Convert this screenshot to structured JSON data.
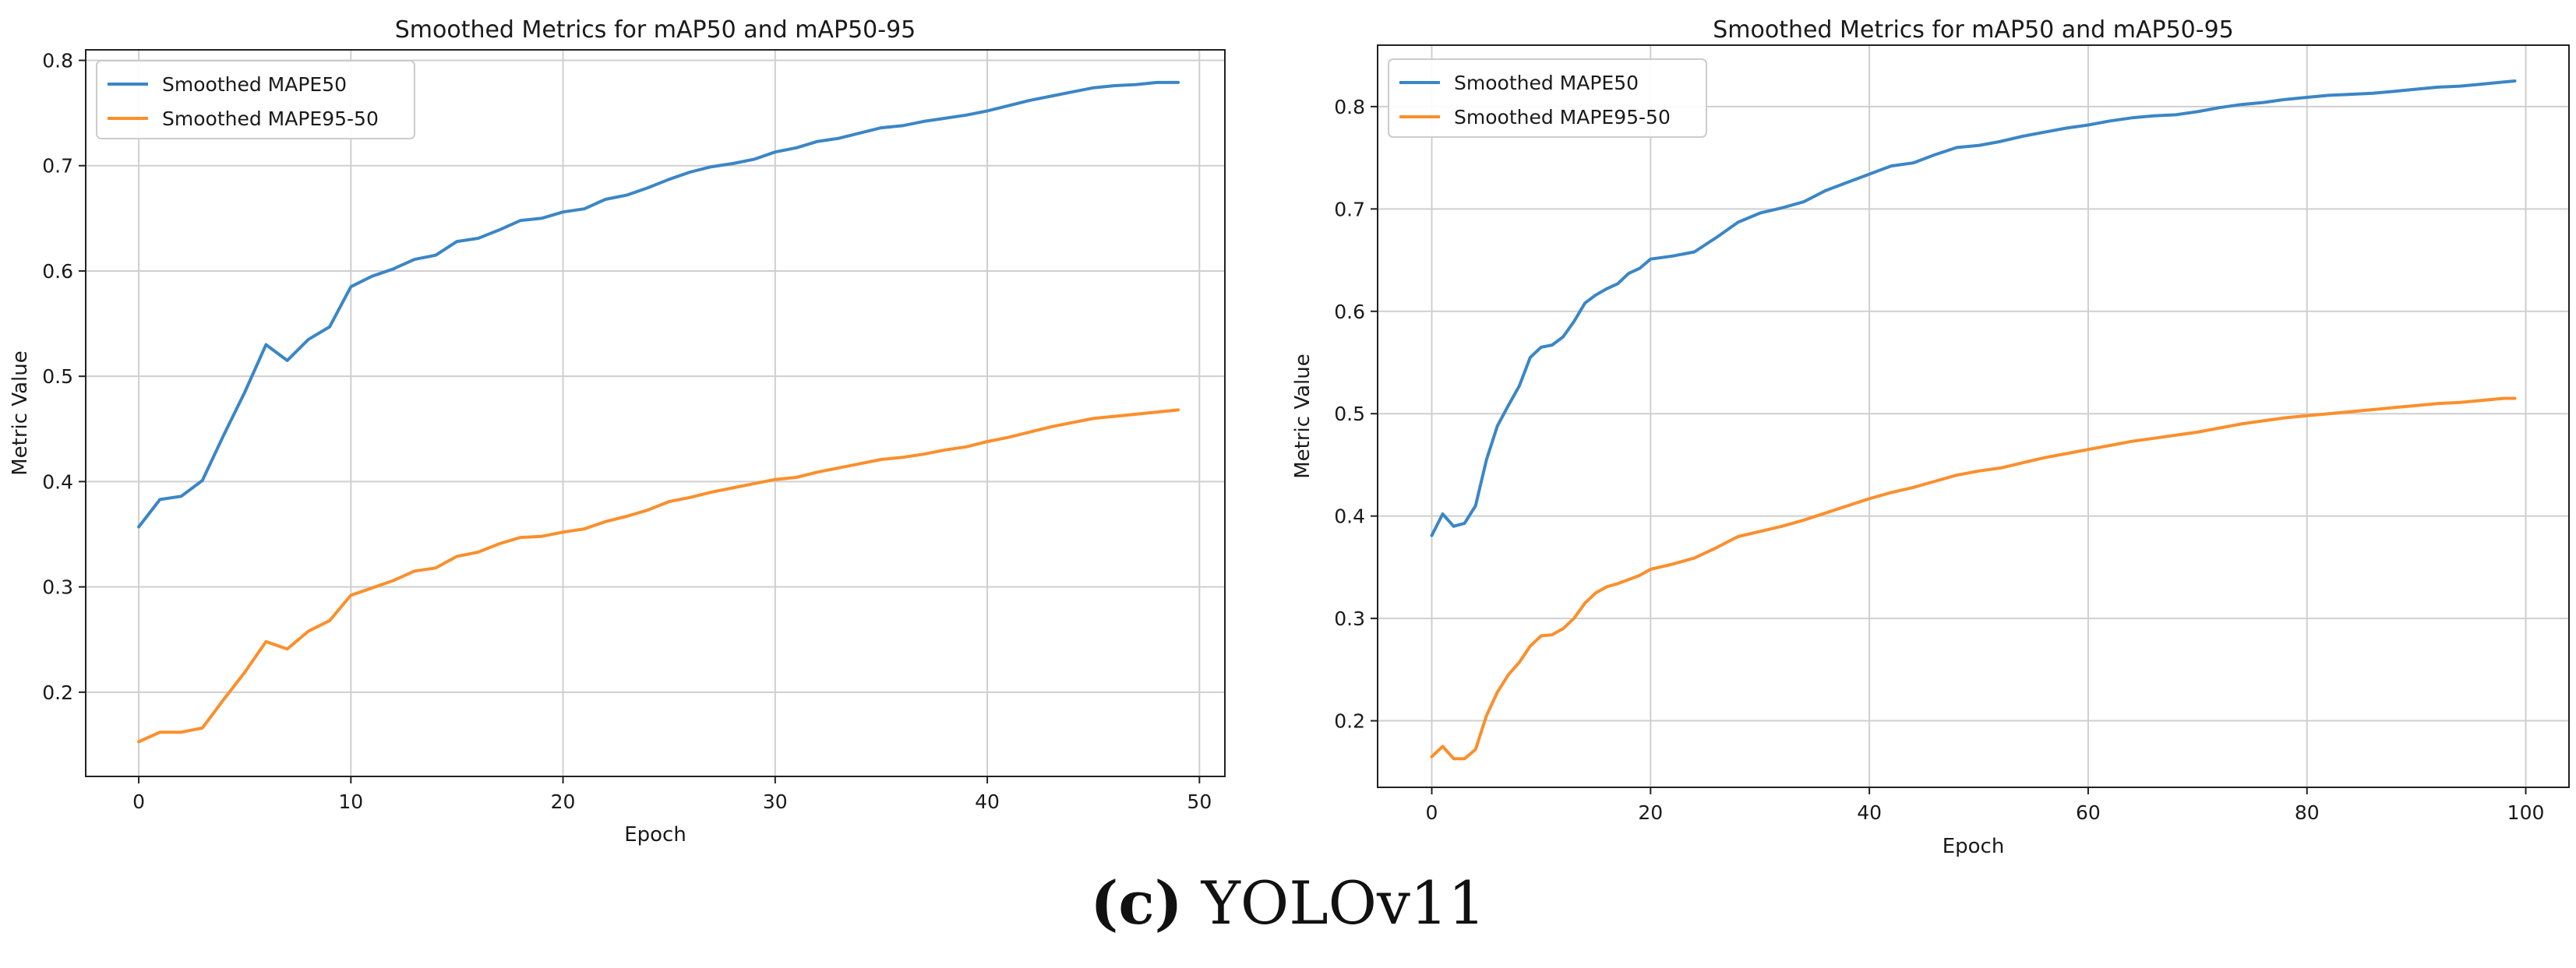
{
  "caption": {
    "label": "(c)",
    "text": "YOLOv11"
  },
  "colors": {
    "series1": "#3b86c6",
    "series2": "#fb8f2c",
    "grid": "#cfcfcf",
    "axis": "#222222"
  },
  "chart_data": [
    {
      "type": "line",
      "title": "Smoothed Metrics for mAP50 and mAP50-95",
      "xlabel": "Epoch",
      "ylabel": "Metric Value",
      "xlim": [
        -2.5,
        51.2
      ],
      "ylim": [
        0.12,
        0.81
      ],
      "xticks": [
        0,
        10,
        20,
        30,
        40,
        50
      ],
      "yticks": [
        0.2,
        0.3,
        0.4,
        0.5,
        0.6,
        0.7,
        0.8
      ],
      "grid": true,
      "legend": "top-left",
      "x": [
        0,
        1,
        2,
        3,
        4,
        5,
        6,
        7,
        8,
        9,
        10,
        11,
        12,
        13,
        14,
        15,
        16,
        17,
        18,
        19,
        20,
        21,
        22,
        23,
        24,
        25,
        26,
        27,
        28,
        29,
        30,
        31,
        32,
        33,
        34,
        35,
        36,
        37,
        38,
        39,
        40,
        41,
        42,
        43,
        44,
        45,
        46,
        47,
        48,
        49
      ],
      "series": [
        {
          "name": "Smoothed MAPE50",
          "color": "#3b86c6",
          "values": [
            0.357,
            0.383,
            0.386,
            0.401,
            0.444,
            0.485,
            0.53,
            0.515,
            0.535,
            0.547,
            0.585,
            0.595,
            0.602,
            0.611,
            0.615,
            0.628,
            0.631,
            0.639,
            0.648,
            0.65,
            0.656,
            0.659,
            0.668,
            0.672,
            0.679,
            0.687,
            0.694,
            0.699,
            0.702,
            0.706,
            0.713,
            0.717,
            0.723,
            0.726,
            0.731,
            0.736,
            0.738,
            0.742,
            0.745,
            0.748,
            0.752,
            0.757,
            0.762,
            0.766,
            0.77,
            0.774,
            0.776,
            0.777,
            0.779,
            0.779
          ]
        },
        {
          "name": "Smoothed MAPE95-50",
          "color": "#fb8f2c",
          "values": [
            0.153,
            0.162,
            0.162,
            0.166,
            0.193,
            0.219,
            0.248,
            0.241,
            0.258,
            0.268,
            0.292,
            0.299,
            0.306,
            0.315,
            0.318,
            0.329,
            0.333,
            0.341,
            0.347,
            0.348,
            0.352,
            0.355,
            0.362,
            0.367,
            0.373,
            0.381,
            0.385,
            0.39,
            0.394,
            0.398,
            0.402,
            0.404,
            0.409,
            0.413,
            0.417,
            0.421,
            0.423,
            0.426,
            0.43,
            0.433,
            0.438,
            0.442,
            0.447,
            0.452,
            0.456,
            0.46,
            0.462,
            0.464,
            0.466,
            0.468
          ]
        }
      ]
    },
    {
      "type": "line",
      "title": "Smoothed Metrics for mAP50 and mAP50-95",
      "xlabel": "Epoch",
      "ylabel": "Metric Value",
      "xlim": [
        -4.95,
        103.95
      ],
      "ylim": [
        0.135,
        0.86
      ],
      "xticks": [
        0,
        20,
        40,
        60,
        80,
        100
      ],
      "yticks": [
        0.2,
        0.3,
        0.4,
        0.5,
        0.6,
        0.7,
        0.8
      ],
      "grid": true,
      "legend": "top-left",
      "x": [
        0,
        1,
        2,
        3,
        4,
        5,
        6,
        7,
        8,
        9,
        10,
        11,
        12,
        13,
        14,
        15,
        16,
        17,
        18,
        19,
        20,
        22,
        24,
        26,
        28,
        30,
        32,
        34,
        36,
        38,
        40,
        42,
        44,
        46,
        48,
        50,
        52,
        54,
        56,
        58,
        60,
        62,
        64,
        66,
        68,
        70,
        72,
        74,
        76,
        78,
        80,
        82,
        84,
        86,
        88,
        90,
        92,
        94,
        96,
        98,
        99
      ],
      "series": [
        {
          "name": "Smoothed MAPE50",
          "color": "#3b86c6",
          "values": [
            0.381,
            0.402,
            0.39,
            0.393,
            0.41,
            0.455,
            0.488,
            0.508,
            0.527,
            0.555,
            0.565,
            0.567,
            0.575,
            0.59,
            0.608,
            0.616,
            0.622,
            0.627,
            0.637,
            0.642,
            0.651,
            0.654,
            0.658,
            0.672,
            0.687,
            0.696,
            0.701,
            0.707,
            0.718,
            0.726,
            0.734,
            0.742,
            0.745,
            0.753,
            0.76,
            0.762,
            0.766,
            0.771,
            0.775,
            0.779,
            0.782,
            0.786,
            0.789,
            0.791,
            0.792,
            0.795,
            0.799,
            0.802,
            0.804,
            0.807,
            0.809,
            0.811,
            0.812,
            0.813,
            0.815,
            0.817,
            0.819,
            0.82,
            0.822,
            0.824,
            0.825
          ]
        },
        {
          "name": "Smoothed MAPE95-50",
          "color": "#fb8f2c",
          "values": [
            0.165,
            0.175,
            0.163,
            0.163,
            0.172,
            0.205,
            0.228,
            0.245,
            0.257,
            0.273,
            0.283,
            0.284,
            0.29,
            0.3,
            0.315,
            0.325,
            0.331,
            0.334,
            0.338,
            0.342,
            0.348,
            0.353,
            0.359,
            0.369,
            0.38,
            0.385,
            0.39,
            0.396,
            0.403,
            0.41,
            0.417,
            0.423,
            0.428,
            0.434,
            0.44,
            0.444,
            0.447,
            0.452,
            0.457,
            0.461,
            0.465,
            0.469,
            0.473,
            0.476,
            0.479,
            0.482,
            0.486,
            0.49,
            0.493,
            0.496,
            0.498,
            0.5,
            0.502,
            0.504,
            0.506,
            0.508,
            0.51,
            0.511,
            0.513,
            0.515,
            0.515
          ]
        }
      ]
    }
  ]
}
